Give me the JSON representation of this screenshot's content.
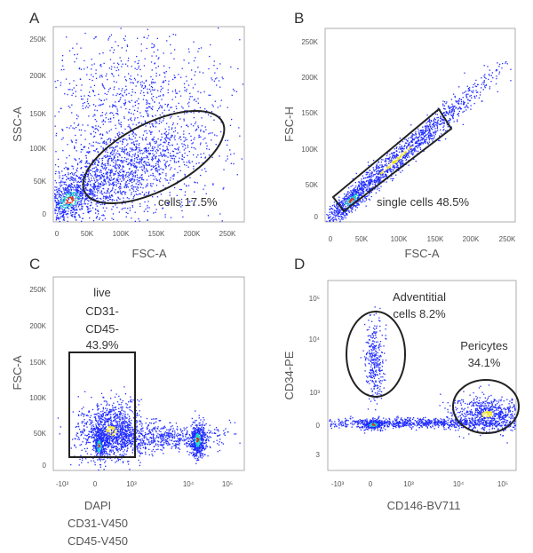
{
  "colors": {
    "low": "#1f2bff",
    "mid": "#1fd4c9",
    "high": "#f0e020",
    "peak": "#e0301a",
    "gate": "#222222"
  },
  "chart_data": [
    {
      "type": "scatter",
      "panel_label": "A",
      "xlabel": "FSC-A",
      "ylabel": "SSC-A",
      "xlim": [
        0,
        262144
      ],
      "ylim": [
        0,
        262144
      ],
      "xticks": [
        "0",
        "50K",
        "100K",
        "150K",
        "200K",
        "250K"
      ],
      "yticks": [
        "0",
        "50K",
        "100K",
        "150K",
        "200K",
        "250K"
      ],
      "gate": {
        "shape": "ellipse",
        "name": "cells",
        "percent": "17.5%",
        "label": "cells 17.5%"
      }
    },
    {
      "type": "scatter",
      "panel_label": "B",
      "xlabel": "FSC-A",
      "ylabel": "FSC-H",
      "xlim": [
        0,
        262144
      ],
      "ylim": [
        0,
        262144
      ],
      "xticks": [
        "0",
        "50K",
        "100K",
        "150K",
        "200K",
        "250K"
      ],
      "yticks": [
        "0",
        "50K",
        "100K",
        "150K",
        "200K",
        "250K"
      ],
      "gate": {
        "shape": "polygon",
        "name": "single cells",
        "percent": "48.5%",
        "label": "single cells 48.5%"
      }
    },
    {
      "type": "scatter",
      "panel_label": "C",
      "xlabel_lines": [
        "DAPI",
        "CD31-V450",
        "CD45-V450"
      ],
      "ylabel": "FSC-A",
      "ylim": [
        0,
        262144
      ],
      "xticks": [
        "-10³",
        "0",
        "10³",
        "10⁴",
        "10⁵"
      ],
      "yticks": [
        "0",
        "50K",
        "100K",
        "150K",
        "200K",
        "250K"
      ],
      "gate": {
        "shape": "rectangle",
        "label_lines": [
          "live",
          "CD31-",
          "CD45-",
          "43.9%"
        ]
      }
    },
    {
      "type": "scatter",
      "panel_label": "D",
      "xlabel": "CD146-BV711",
      "ylabel": "CD34-PE",
      "xticks": [
        "-10³",
        "0",
        "10³",
        "10⁴",
        "10⁵"
      ],
      "yticks": [
        "10⁵",
        "10⁴",
        "10³",
        "0",
        "3"
      ],
      "gates": [
        {
          "shape": "ellipse",
          "label_lines": [
            "Adventitial",
            "cells 8.2%"
          ]
        },
        {
          "shape": "ellipse",
          "label_lines": [
            "Pericytes",
            "34.1%"
          ]
        }
      ]
    }
  ]
}
